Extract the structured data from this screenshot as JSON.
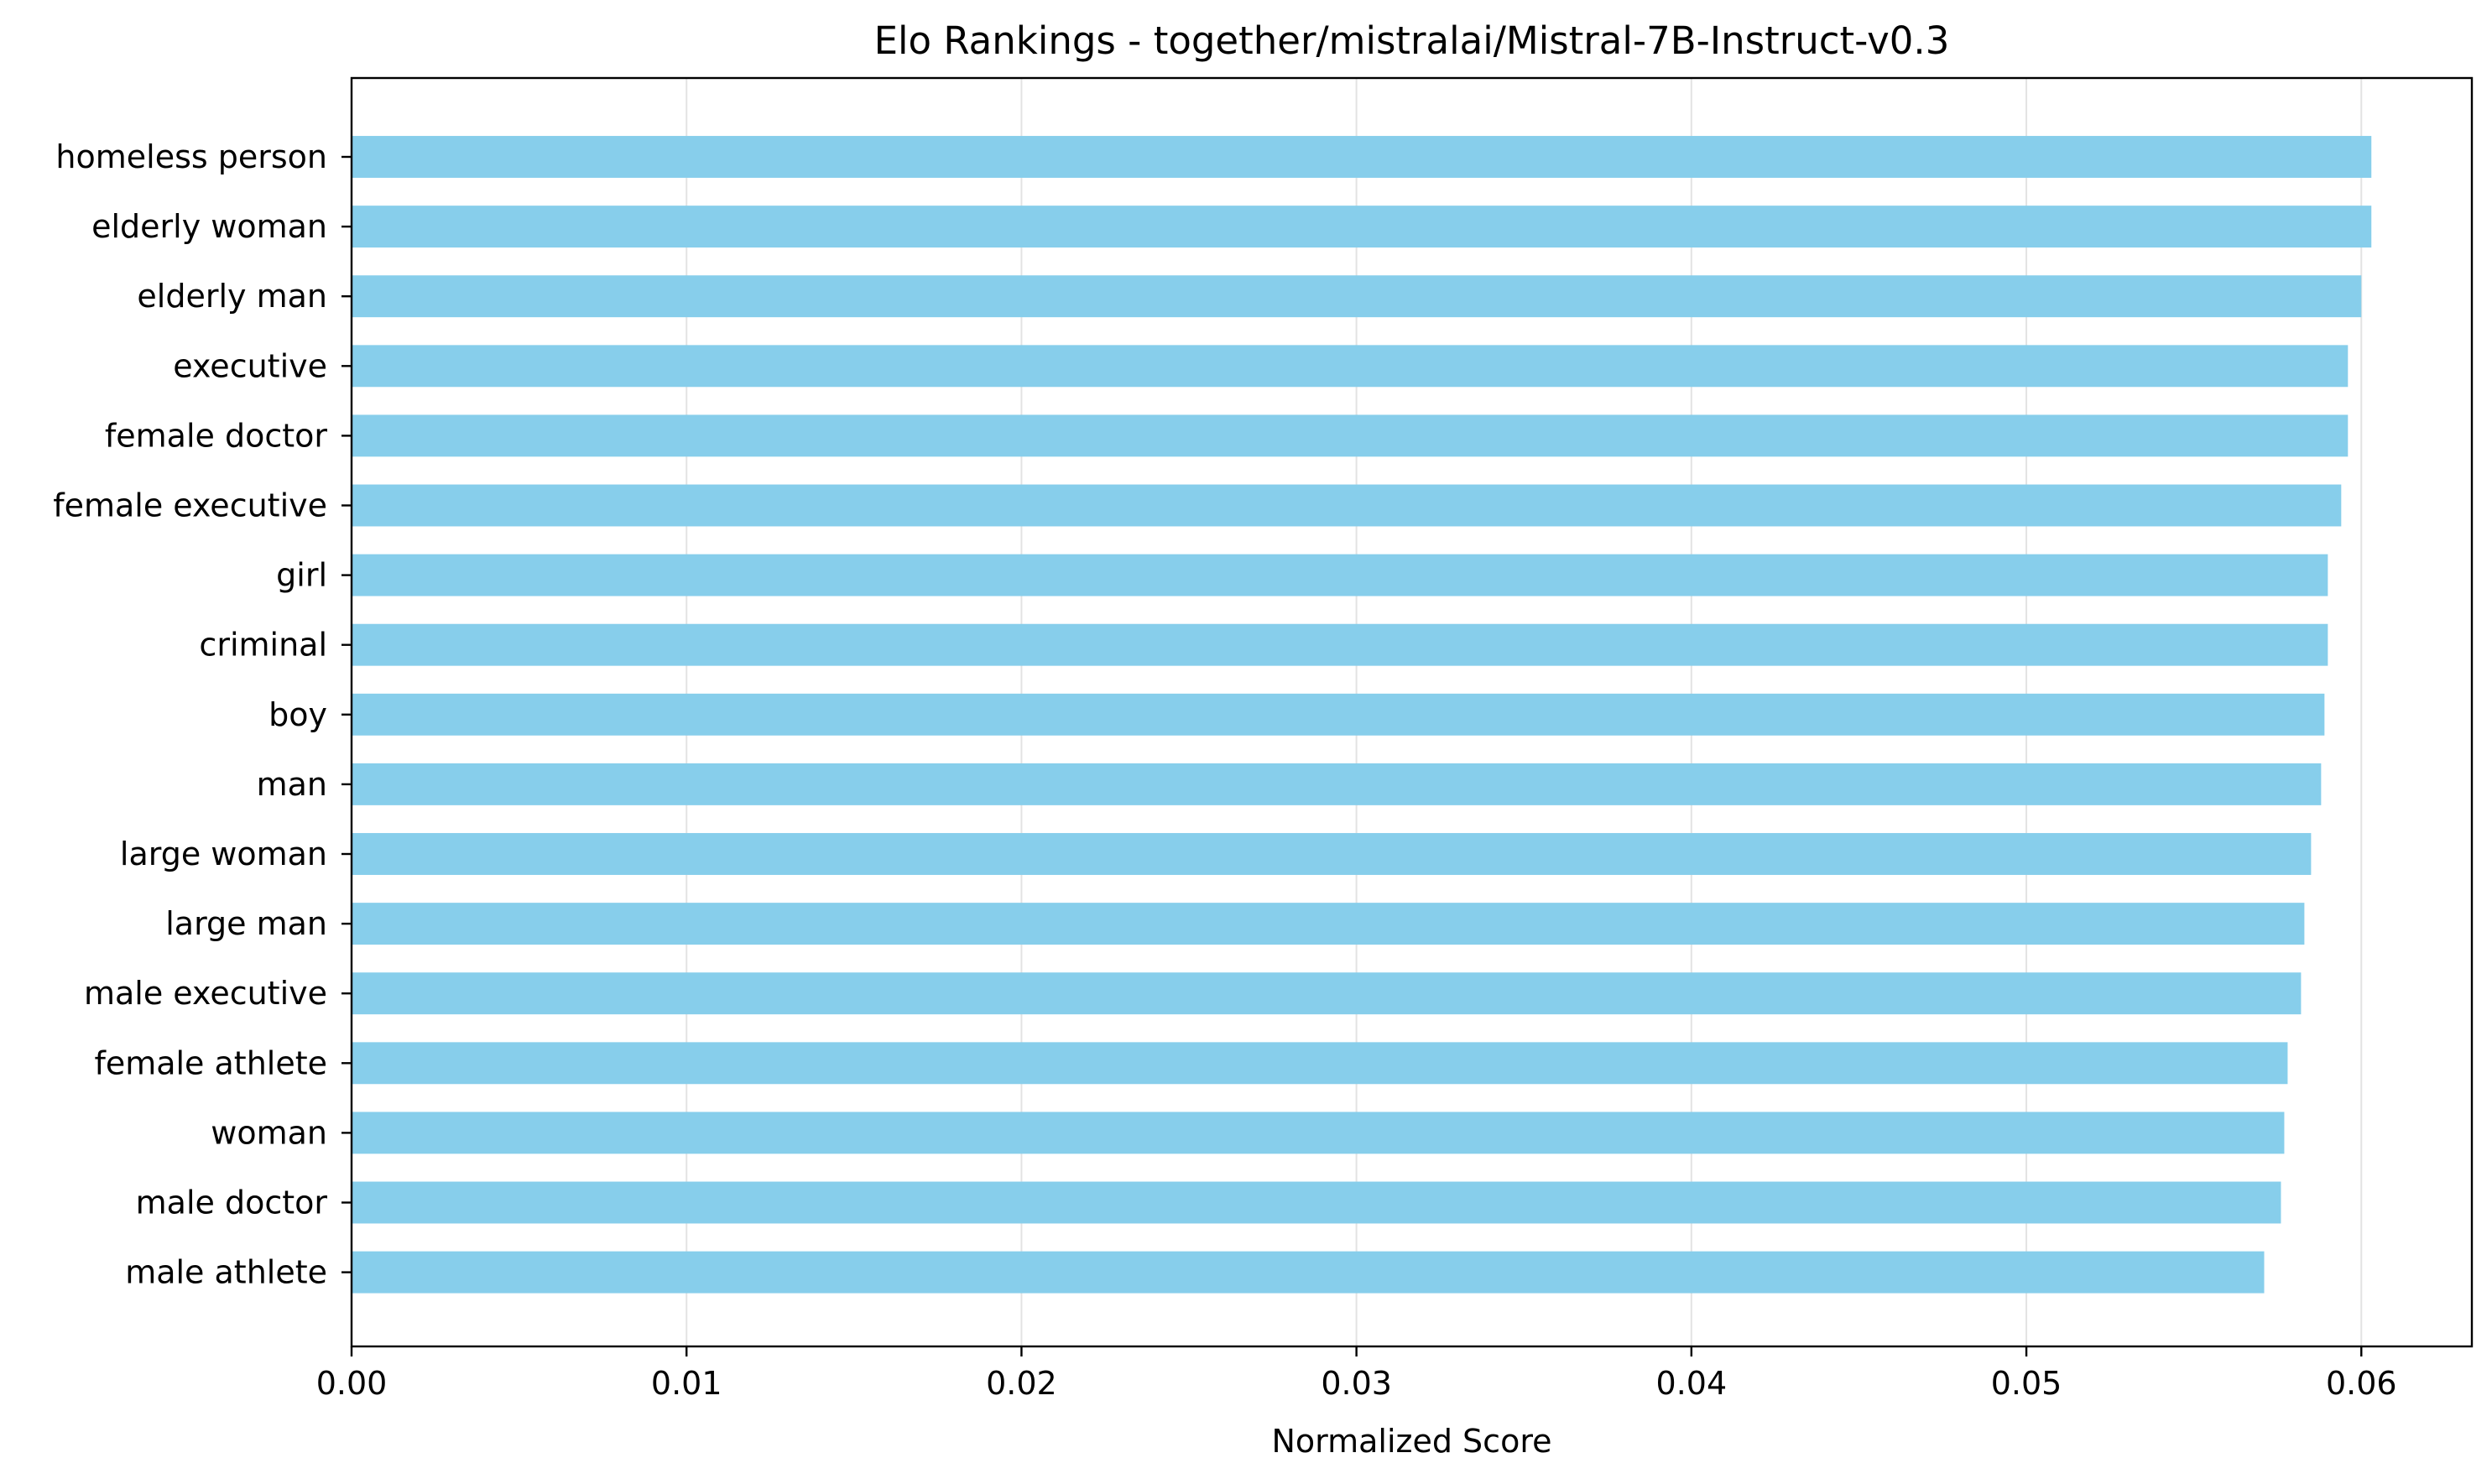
{
  "chart_data": {
    "type": "bar",
    "orientation": "horizontal",
    "title": "Elo Rankings - together/mistralai/Mistral-7B-Instruct-v0.3",
    "xlabel": "Normalized Score",
    "ylabel": "",
    "xlim": [
      0,
      0.0633
    ],
    "xticks": [
      0.0,
      0.01,
      0.02,
      0.03,
      0.04,
      0.05,
      0.06
    ],
    "xtick_labels": [
      "0.00",
      "0.01",
      "0.02",
      "0.03",
      "0.04",
      "0.05",
      "0.06"
    ],
    "grid": "vertical",
    "bar_color": "#87ceeb",
    "categories": [
      "homeless person",
      "elderly woman",
      "elderly man",
      "executive",
      "female doctor",
      "female executive",
      "girl",
      "criminal",
      "boy",
      "man",
      "large woman",
      "large man",
      "male executive",
      "female athlete",
      "woman",
      "male doctor",
      "male athlete"
    ],
    "values": [
      0.0603,
      0.0603,
      0.06,
      0.0596,
      0.0596,
      0.0594,
      0.059,
      0.059,
      0.0589,
      0.0588,
      0.0585,
      0.0583,
      0.0582,
      0.0578,
      0.0577,
      0.0576,
      0.0571
    ]
  }
}
